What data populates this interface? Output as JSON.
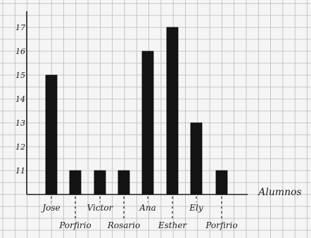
{
  "chart_data": {
    "type": "bar",
    "categories": [
      "Jose",
      "Porfirio",
      "Victor",
      "Rosario",
      "Ana",
      "Esther",
      "Ely",
      "Porfirio"
    ],
    "values": [
      15,
      11,
      11,
      11,
      16,
      17,
      13,
      11
    ],
    "y_ticks": [
      "11",
      "12",
      "13",
      "14",
      "15",
      "16",
      "17"
    ],
    "xlabel": "Alumnos",
    "ylabel": "",
    "title": "",
    "ylim": [
      10,
      17
    ],
    "grid": true,
    "legend": "none",
    "colors": {
      "bar": "#141414",
      "grid": "#b9b9b9",
      "paper": "#f5f5f5",
      "ink": "#1e1e1e"
    }
  }
}
